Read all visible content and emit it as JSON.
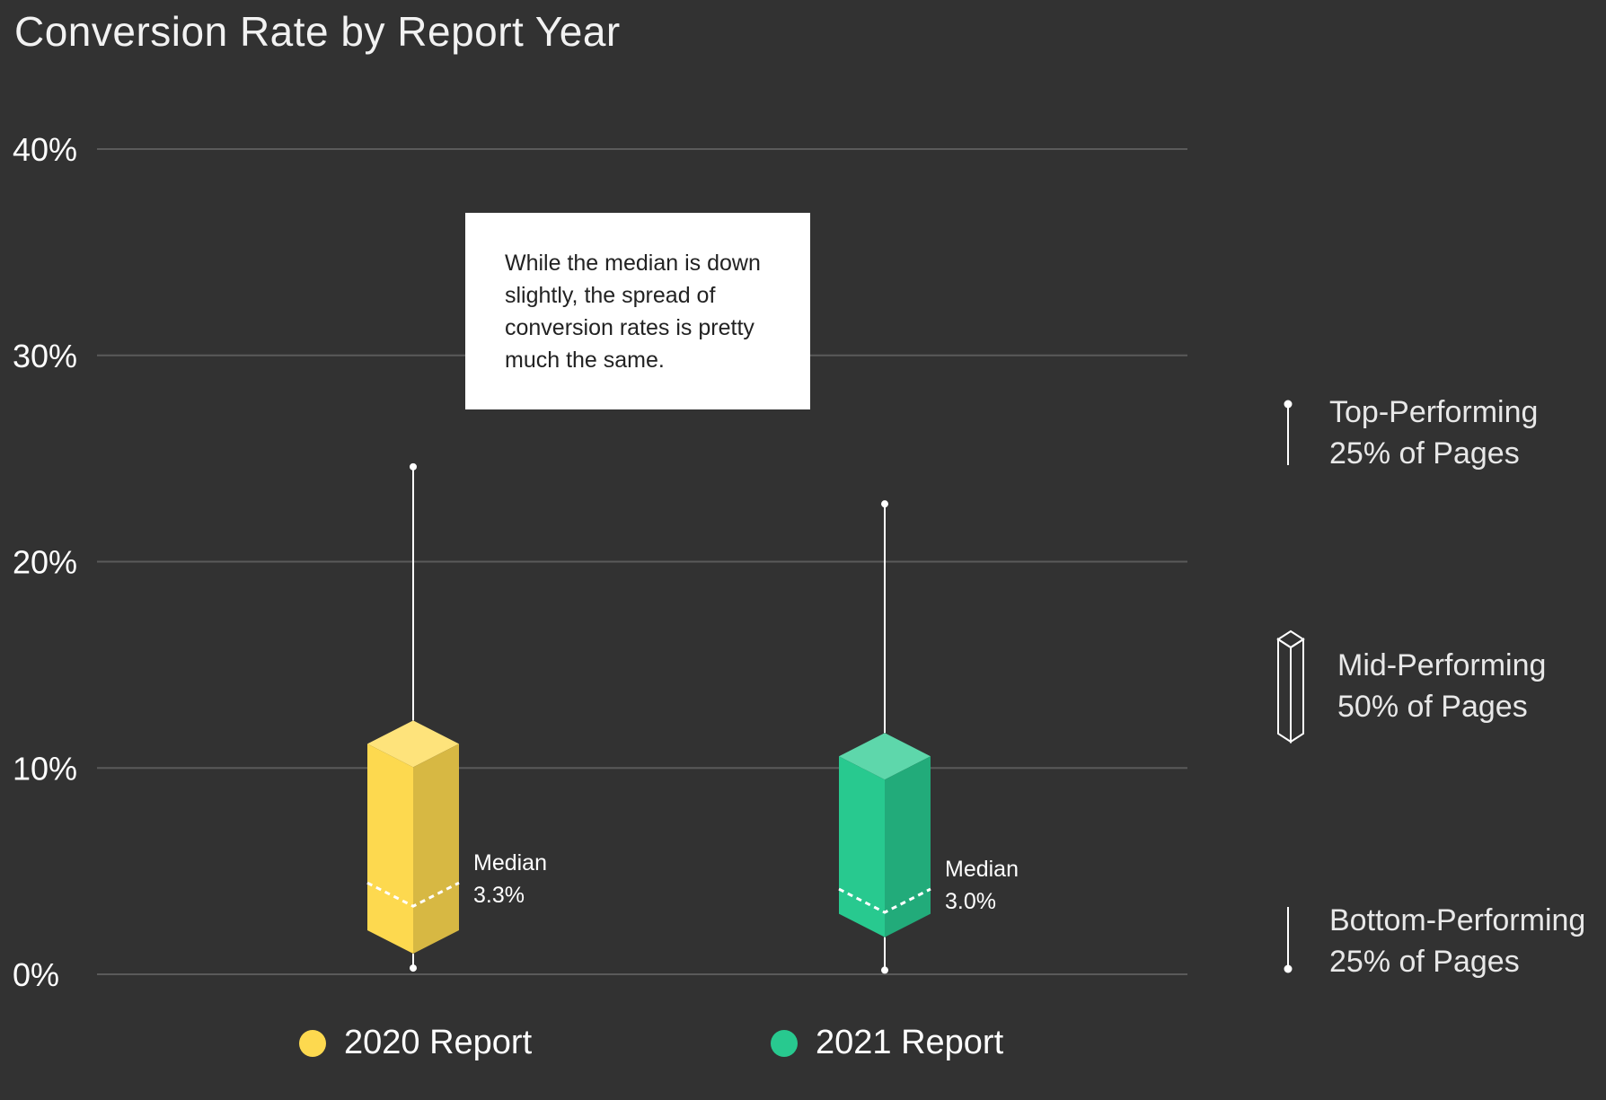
{
  "title": "Conversion Rate by Report Year",
  "callout": {
    "text": "While the median is down slightly, the spread of conversion rates is pretty much the same."
  },
  "colors": {
    "background": "#323232",
    "report_2020": "#fdd94f",
    "report_2021": "#28c98f"
  },
  "side_legend": {
    "top": {
      "line1": "Top-Performing",
      "line2": "25% of Pages"
    },
    "mid": {
      "line1": "Mid-Performing",
      "line2": "50% of Pages"
    },
    "bottom": {
      "line1": "Bottom-Performing",
      "line2": "25% of Pages"
    }
  },
  "chart_data": {
    "type": "box",
    "title": "Conversion Rate by Report Year",
    "xlabel": "",
    "ylabel": "",
    "ylim": [
      0,
      40
    ],
    "yticks": [
      0,
      10,
      20,
      30,
      40
    ],
    "ytick_labels": [
      "0%",
      "10%",
      "20%",
      "30%",
      "40%"
    ],
    "grid": true,
    "legend_position": "bottom",
    "series": [
      {
        "name": "2020 Report",
        "color": "#fdd94f",
        "min": 0.3,
        "q1": 1.0,
        "median": 3.3,
        "q3": 12.3,
        "max": 24.6,
        "median_label": "Median",
        "median_value": "3.3%"
      },
      {
        "name": "2021 Report",
        "color": "#28c98f",
        "min": 0.2,
        "q1": 1.8,
        "median": 3.0,
        "q3": 11.7,
        "max": 22.8,
        "median_label": "Median",
        "median_value": "3.0%"
      }
    ]
  }
}
